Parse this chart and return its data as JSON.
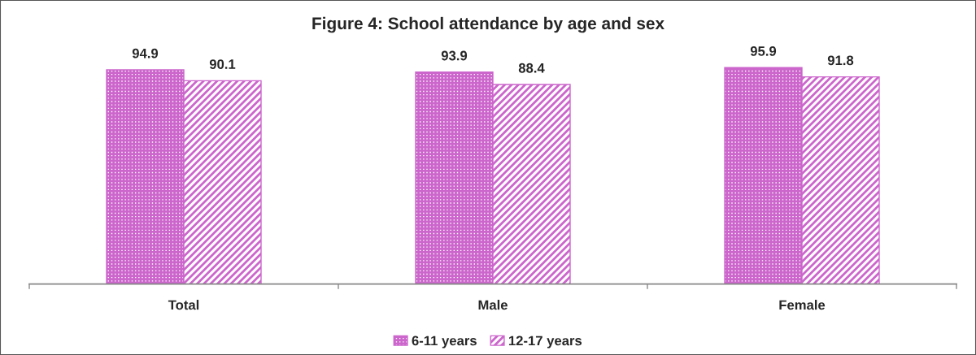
{
  "chart_data": {
    "type": "bar",
    "title": "Figure 4: School attendance by age and sex",
    "categories": [
      "Total",
      "Male",
      "Female"
    ],
    "series": [
      {
        "name": "6-11 years",
        "color": "#cc66cc",
        "values": [
          94.9,
          93.9,
          95.9
        ]
      },
      {
        "name": "12-17 years",
        "color": "#cc66cc",
        "values": [
          90.1,
          88.4,
          91.8
        ]
      }
    ],
    "tick_labels": "x",
    "data_labels": true,
    "grid": false,
    "legend": "bottom"
  }
}
